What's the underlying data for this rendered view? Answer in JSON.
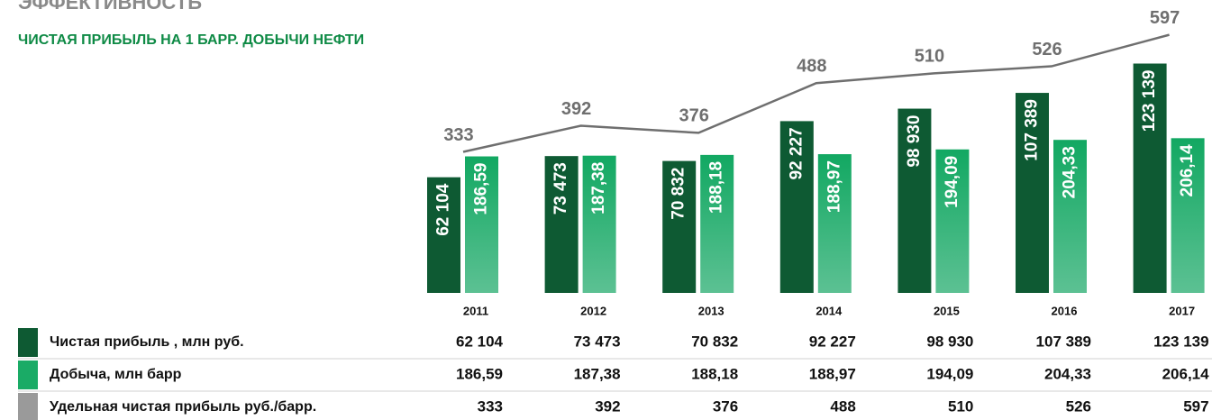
{
  "chart_data": {
    "type": "bar_line",
    "title": "ЭФФЕКТИВНОСТЬ",
    "subtitle": "ЧИСТАЯ ПРИБЫЛЬ НА 1 БАРР. ДОБЫЧИ НЕФТИ",
    "categories": [
      "2011",
      "2012",
      "2013",
      "2014",
      "2015",
      "2016",
      "2017"
    ],
    "ylim": [
      0,
      150000
    ],
    "y2lim": [
      40,
      340
    ],
    "y3lim": [
      15,
      645
    ],
    "series": [
      {
        "name": "Чистая прибыль , млн руб.",
        "type": "bar",
        "axis": "y",
        "color": "#0e5a33",
        "values": [
          62104,
          73473,
          70832,
          92227,
          98930,
          107389,
          123139
        ],
        "value_labels": [
          "62 104",
          "73 473",
          "70 832",
          "92 227",
          "98 930",
          "107 389",
          "123 139"
        ]
      },
      {
        "name": "Добыча, млн барр",
        "type": "bar",
        "axis": "y2",
        "color": "#1aab66",
        "values": [
          186.59,
          187.38,
          188.18,
          188.97,
          194.09,
          204.33,
          206.14
        ],
        "value_labels": [
          "186,59",
          "187,38",
          "188,18",
          "188,97",
          "194,09",
          "204,33",
          "206,14"
        ]
      },
      {
        "name": "Удельная чистая прибыль руб./барр.",
        "type": "line",
        "axis": "y3",
        "color": "#6f6f6f",
        "values": [
          333,
          392,
          376,
          488,
          510,
          526,
          597
        ]
      }
    ]
  }
}
